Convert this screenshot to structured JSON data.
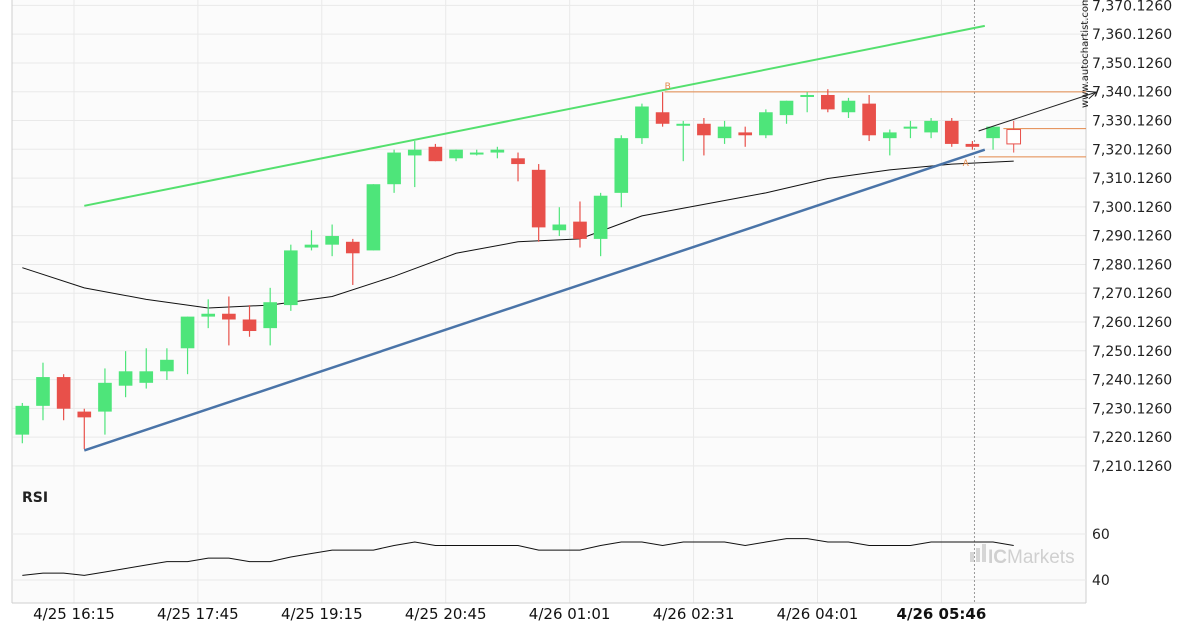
{
  "watermark": {
    "site": "www.autochartist.com",
    "logo_ic": "IC",
    "logo_markets": "Markets"
  },
  "colors": {
    "bull": "#4ee57a",
    "bear": "#e8504a",
    "support": "#4a74a8",
    "resistance": "#54e06e",
    "ma": "#111111",
    "level": "#e3884a",
    "grid": "#e9e9e9",
    "rsi": "#111111"
  },
  "chart_data": [
    {
      "type": "candlestick",
      "title": "",
      "y_ticks": [
        "7,370.1260",
        "7,360.1260",
        "7,350.1260",
        "7,340.1260",
        "7,330.1260",
        "7,320.1260",
        "7,310.1260",
        "7,300.1260",
        "7,290.1260",
        "7,280.1260",
        "7,270.1260",
        "7,260.1260",
        "7,250.1260",
        "7,240.1260",
        "7,230.1260",
        "7,220.1260",
        "7,210.1260"
      ],
      "ylim": [
        7203.5,
        7372.0
      ],
      "x_ticks": [
        "4/25 16:15",
        "4/25 17:45",
        "4/25 19:15",
        "4/25 20:45",
        "4/26 01:01",
        "4/26 02:31",
        "4/26 04:01",
        "4/26 05:46"
      ],
      "x_tick_index": [
        2.5,
        8.5,
        14.5,
        20.5,
        26.5,
        32.5,
        38.5,
        44.5
      ],
      "n_slots": 52,
      "current_index": 46.1,
      "candles": [
        {
          "o": 7221,
          "h": 7232,
          "l": 7218,
          "c": 7231
        },
        {
          "o": 7231,
          "h": 7246,
          "l": 7226,
          "c": 7241
        },
        {
          "o": 7241,
          "h": 7242,
          "l": 7226,
          "c": 7230
        },
        {
          "o": 7229,
          "h": 7230,
          "l": 7216,
          "c": 7227
        },
        {
          "o": 7229,
          "h": 7244,
          "l": 7221,
          "c": 7239
        },
        {
          "o": 7238,
          "h": 7250,
          "l": 7234,
          "c": 7243
        },
        {
          "o": 7239,
          "h": 7251,
          "l": 7237,
          "c": 7243
        },
        {
          "o": 7243,
          "h": 7251,
          "l": 7240,
          "c": 7247
        },
        {
          "o": 7251,
          "h": 7262,
          "l": 7242,
          "c": 7262
        },
        {
          "o": 7262,
          "h": 7268,
          "l": 7258,
          "c": 7263
        },
        {
          "o": 7263,
          "h": 7269,
          "l": 7252,
          "c": 7261
        },
        {
          "o": 7261,
          "h": 7266,
          "l": 7255,
          "c": 7257
        },
        {
          "o": 7258,
          "h": 7272,
          "l": 7252,
          "c": 7267
        },
        {
          "o": 7266,
          "h": 7287,
          "l": 7264,
          "c": 7285
        },
        {
          "o": 7286,
          "h": 7292,
          "l": 7285,
          "c": 7287
        },
        {
          "o": 7287,
          "h": 7294,
          "l": 7283,
          "c": 7290
        },
        {
          "o": 7288,
          "h": 7289,
          "l": 7273,
          "c": 7284
        },
        {
          "o": 7285,
          "h": 7308,
          "l": 7285,
          "c": 7308
        },
        {
          "o": 7308,
          "h": 7320,
          "l": 7305,
          "c": 7319
        },
        {
          "o": 7318,
          "h": 7323,
          "l": 7307,
          "c": 7320
        },
        {
          "o": 7321,
          "h": 7322,
          "l": 7316,
          "c": 7316
        },
        {
          "o": 7317,
          "h": 7320,
          "l": 7316,
          "c": 7320
        },
        {
          "o": 7319,
          "h": 7320,
          "l": 7318,
          "c": 7319
        },
        {
          "o": 7319,
          "h": 7321,
          "l": 7317,
          "c": 7320
        },
        {
          "o": 7317,
          "h": 7319,
          "l": 7309,
          "c": 7315
        },
        {
          "o": 7313,
          "h": 7315,
          "l": 7288,
          "c": 7293
        },
        {
          "o": 7292,
          "h": 7300,
          "l": 7290,
          "c": 7294
        },
        {
          "o": 7295,
          "h": 7302,
          "l": 7286,
          "c": 7289
        },
        {
          "o": 7289,
          "h": 7305,
          "l": 7283,
          "c": 7304
        },
        {
          "o": 7305,
          "h": 7325,
          "l": 7300,
          "c": 7324
        },
        {
          "o": 7324,
          "h": 7336,
          "l": 7322,
          "c": 7335
        },
        {
          "o": 7333,
          "h": 7340,
          "l": 7328,
          "c": 7329
        },
        {
          "o": 7329,
          "h": 7330,
          "l": 7316,
          "c": 7329
        },
        {
          "o": 7329,
          "h": 7331,
          "l": 7318,
          "c": 7325
        },
        {
          "o": 7324,
          "h": 7330,
          "l": 7322,
          "c": 7328
        },
        {
          "o": 7326,
          "h": 7328,
          "l": 7321,
          "c": 7325
        },
        {
          "o": 7325,
          "h": 7334,
          "l": 7324,
          "c": 7333
        },
        {
          "o": 7332,
          "h": 7337,
          "l": 7329,
          "c": 7337
        },
        {
          "o": 7339,
          "h": 7340,
          "l": 7333,
          "c": 7339
        },
        {
          "o": 7339,
          "h": 7341,
          "l": 7333,
          "c": 7334
        },
        {
          "o": 7333,
          "h": 7338,
          "l": 7331,
          "c": 7337
        },
        {
          "o": 7336,
          "h": 7339,
          "l": 7323,
          "c": 7325
        },
        {
          "o": 7324,
          "h": 7327,
          "l": 7318,
          "c": 7326
        },
        {
          "o": 7328,
          "h": 7330,
          "l": 7324,
          "c": 7328
        },
        {
          "o": 7326,
          "h": 7331,
          "l": 7324,
          "c": 7330
        },
        {
          "o": 7330,
          "h": 7331,
          "l": 7321,
          "c": 7322
        },
        {
          "o": 7322,
          "h": 7323,
          "l": 7320,
          "c": 7321
        },
        {
          "o": 7324,
          "h": 7328,
          "l": 7320,
          "c": 7328
        }
      ],
      "pending_candle": {
        "index": 48,
        "o": 7327,
        "h": 7330,
        "l": 7319,
        "c": 7322
      },
      "moving_average": [
        [
          0,
          7279
        ],
        [
          3,
          7272
        ],
        [
          6,
          7268
        ],
        [
          9,
          7265
        ],
        [
          12,
          7266
        ],
        [
          15,
          7269
        ],
        [
          18,
          7276
        ],
        [
          21,
          7284
        ],
        [
          24,
          7288
        ],
        [
          27,
          7289
        ],
        [
          30,
          7297
        ],
        [
          33,
          7301
        ],
        [
          36,
          7305
        ],
        [
          39,
          7310
        ],
        [
          42,
          7313
        ],
        [
          45,
          7315
        ],
        [
          48,
          7316
        ]
      ],
      "support_line": [
        [
          3.0,
          7215.5
        ],
        [
          46.6,
          7320.0
        ]
      ],
      "resistance_line": [
        [
          3.0,
          7300.5
        ],
        [
          46.6,
          7363.0
        ]
      ],
      "level_B": {
        "value": 7340.1,
        "from": 31.1,
        "to": 52,
        "label": "B"
      },
      "level_A": {
        "value": 7317.5,
        "from": 46.3,
        "to": 52,
        "label": "A"
      },
      "level_close": {
        "value": 7327.3,
        "from": 47.5,
        "to": 52
      },
      "forecast_arrow": [
        [
          46.3,
          7326.5
        ],
        [
          52.0,
          7340.0
        ]
      ]
    },
    {
      "type": "line",
      "name": "RSI",
      "ylim": [
        30,
        80
      ],
      "y_ticks": [
        "60",
        "40"
      ],
      "y_tick_values": [
        60,
        40
      ],
      "values": [
        [
          0,
          42
        ],
        [
          1,
          43
        ],
        [
          2,
          43
        ],
        [
          3,
          42
        ],
        [
          4,
          43.5
        ],
        [
          5,
          45
        ],
        [
          6,
          46.5
        ],
        [
          7,
          48
        ],
        [
          8,
          48
        ],
        [
          9,
          49.5
        ],
        [
          10,
          49.5
        ],
        [
          11,
          48
        ],
        [
          12,
          48
        ],
        [
          13,
          50
        ],
        [
          14,
          51.5
        ],
        [
          15,
          53
        ],
        [
          16,
          53
        ],
        [
          17,
          53
        ],
        [
          18,
          55
        ],
        [
          19,
          56.5
        ],
        [
          20,
          55
        ],
        [
          21,
          55
        ],
        [
          22,
          55
        ],
        [
          23,
          55
        ],
        [
          24,
          55
        ],
        [
          25,
          53
        ],
        [
          26,
          53
        ],
        [
          27,
          53
        ],
        [
          28,
          55
        ],
        [
          29,
          56.5
        ],
        [
          30,
          56.5
        ],
        [
          31,
          55
        ],
        [
          32,
          56.5
        ],
        [
          33,
          56.5
        ],
        [
          34,
          56.5
        ],
        [
          35,
          55
        ],
        [
          36,
          56.5
        ],
        [
          37,
          58
        ],
        [
          38,
          58
        ],
        [
          39,
          56.5
        ],
        [
          40,
          56.5
        ],
        [
          41,
          55
        ],
        [
          42,
          55
        ],
        [
          43,
          55
        ],
        [
          44,
          56.5
        ],
        [
          45,
          56.5
        ],
        [
          46,
          56.5
        ],
        [
          47,
          56.5
        ],
        [
          48,
          55
        ]
      ]
    }
  ]
}
